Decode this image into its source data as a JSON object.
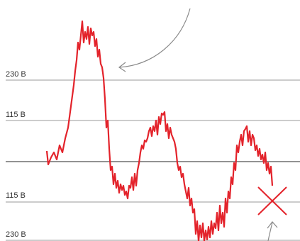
{
  "levels": [
    {
      "label": "230 В"
    },
    {
      "label": "115 В"
    },
    {
      "label": "115 В"
    },
    {
      "label": "230 В"
    }
  ]
}
